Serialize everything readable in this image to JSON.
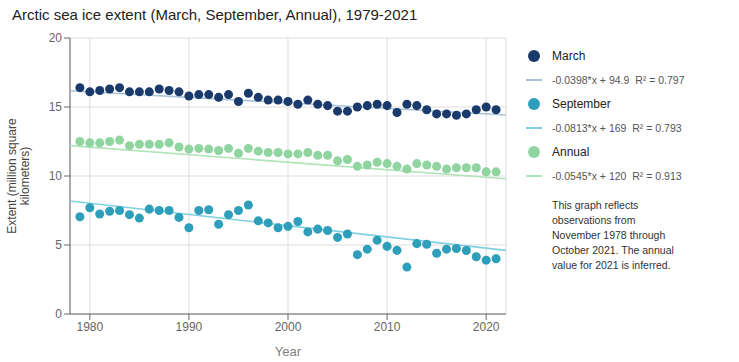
{
  "chart_data": {
    "type": "scatter",
    "title": "Arctic sea ice extent (March, September, Annual), 1979-2021",
    "x_label": "Year",
    "y_label": "Extent (million square\nkilometers)",
    "xlim": [
      1978,
      2022
    ],
    "xticks": [
      1980,
      1990,
      2000,
      2010,
      2020
    ],
    "ylim": [
      0,
      20
    ],
    "yticks": [
      0,
      5,
      10,
      15,
      20
    ],
    "grid": true,
    "legend": "right",
    "annotation": "This graph reflects\nobservations from\nNovember 1978 through\nOctober 2021. The annual\nvalue for 2021 is inferred.",
    "series": [
      {
        "name": "March",
        "type": "scatter",
        "color": "#1a3a6b",
        "x": [
          1979,
          1980,
          1981,
          1982,
          1983,
          1984,
          1985,
          1986,
          1987,
          1988,
          1989,
          1990,
          1991,
          1992,
          1993,
          1994,
          1995,
          1996,
          1997,
          1998,
          1999,
          2000,
          2001,
          2002,
          2003,
          2004,
          2005,
          2006,
          2007,
          2008,
          2009,
          2010,
          2011,
          2012,
          2013,
          2014,
          2015,
          2016,
          2017,
          2018,
          2019,
          2020,
          2021
        ],
        "values": [
          16.4,
          16.1,
          16.2,
          16.3,
          16.4,
          16.1,
          16.1,
          16.1,
          16.3,
          16.2,
          16.1,
          15.8,
          15.9,
          15.9,
          15.7,
          15.9,
          15.4,
          16.0,
          15.7,
          15.5,
          15.5,
          15.4,
          15.2,
          15.5,
          15.2,
          15.1,
          14.7,
          14.7,
          15.0,
          15.1,
          15.2,
          15.1,
          14.6,
          15.2,
          15.1,
          14.8,
          14.5,
          14.5,
          14.4,
          14.5,
          14.8,
          15.0,
          14.8
        ]
      },
      {
        "name": "-0.0398*x + 94.9  R² = 0.797",
        "type": "line",
        "color": "#a8c4dc",
        "x": [
          1978,
          2022
        ],
        "values": [
          16.1756,
          14.4244
        ]
      },
      {
        "name": "September",
        "type": "scatter",
        "color": "#2e9fba",
        "x": [
          1979,
          1980,
          1981,
          1982,
          1983,
          1984,
          1985,
          1986,
          1987,
          1988,
          1989,
          1990,
          1991,
          1992,
          1993,
          1994,
          1995,
          1996,
          1997,
          1998,
          1999,
          2000,
          2001,
          2002,
          2003,
          2004,
          2005,
          2006,
          2007,
          2008,
          2009,
          2010,
          2011,
          2012,
          2013,
          2014,
          2015,
          2016,
          2017,
          2018,
          2019,
          2020,
          2021
        ],
        "values": [
          7.05,
          7.7,
          7.25,
          7.45,
          7.5,
          7.2,
          6.95,
          7.6,
          7.5,
          7.5,
          7.0,
          6.25,
          7.5,
          7.55,
          6.5,
          7.2,
          7.5,
          7.9,
          6.75,
          6.6,
          6.25,
          6.35,
          6.7,
          5.95,
          6.15,
          6.05,
          5.55,
          5.8,
          4.3,
          4.7,
          5.35,
          4.9,
          4.61,
          3.4,
          5.1,
          5.05,
          4.4,
          4.7,
          4.75,
          4.6,
          4.15,
          3.9,
          4.0
        ]
      },
      {
        "name": "-0.0813*x + 169  R² = 0.793",
        "type": "line",
        "color": "#80d0e0",
        "x": [
          1978,
          2022
        ],
        "values": [
          8.1886,
          4.6114
        ]
      },
      {
        "name": "Annual",
        "type": "scatter",
        "color": "#90d4a0",
        "x": [
          1979,
          1980,
          1981,
          1982,
          1983,
          1984,
          1985,
          1986,
          1987,
          1988,
          1989,
          1990,
          1991,
          1992,
          1993,
          1994,
          1995,
          1996,
          1997,
          1998,
          1999,
          2000,
          2001,
          2002,
          2003,
          2004,
          2005,
          2006,
          2007,
          2008,
          2009,
          2010,
          2011,
          2012,
          2013,
          2014,
          2015,
          2016,
          2017,
          2018,
          2019,
          2020,
          2021
        ],
        "values": [
          12.5,
          12.4,
          12.4,
          12.5,
          12.6,
          12.2,
          12.3,
          12.3,
          12.3,
          12.4,
          12.1,
          11.95,
          12.0,
          11.95,
          11.85,
          12.0,
          11.65,
          12.0,
          11.8,
          11.7,
          11.7,
          11.6,
          11.6,
          11.7,
          11.5,
          11.5,
          11.1,
          11.2,
          10.7,
          10.8,
          11.0,
          10.9,
          10.7,
          10.5,
          10.9,
          10.8,
          10.7,
          10.5,
          10.6,
          10.6,
          10.6,
          10.3,
          10.3
        ]
      },
      {
        "name": "-0.0545*x + 120  R² = 0.913",
        "type": "line",
        "color": "#b0e4b8",
        "x": [
          1978,
          2022
        ],
        "values": [
          12.199,
          9.801
        ]
      }
    ]
  }
}
